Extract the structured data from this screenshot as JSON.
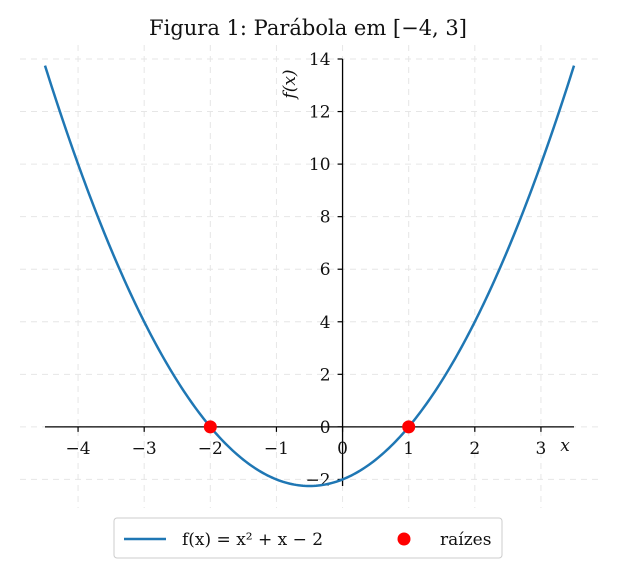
{
  "chart_data": {
    "type": "line",
    "title": "Figura 1: Parábola em [−4, 3]",
    "xlabel": "x",
    "ylabel": "f(x)",
    "xlim": [
      -4.5,
      3.5
    ],
    "ylim": [
      -2.25,
      14
    ],
    "grid": true,
    "legend_position": "bottom-center",
    "x_ticks": [
      -4,
      -3,
      -2,
      -1,
      0,
      1,
      2,
      3
    ],
    "x_tick_labels": [
      "−4",
      "−3",
      "−2",
      "−1",
      "0",
      "1",
      "2",
      "3"
    ],
    "y_ticks": [
      -2,
      0,
      2,
      4,
      6,
      8,
      10,
      12,
      14
    ],
    "y_tick_labels": [
      "−2",
      "0",
      "2",
      "4",
      "6",
      "8",
      "10",
      "12",
      "14"
    ],
    "series": [
      {
        "name": "f(x) = x² + x − 2",
        "kind": "line",
        "color": "#1f77b4",
        "x": [
          -4.5,
          -4.0,
          -3.5,
          -3.0,
          -2.5,
          -2.0,
          -1.5,
          -1.0,
          -0.5,
          0.0,
          0.5,
          1.0,
          1.5,
          2.0,
          2.5,
          3.0,
          3.5
        ],
        "y": [
          13.75,
          10.0,
          6.75,
          4.0,
          1.75,
          0.0,
          -1.25,
          -2.0,
          -2.25,
          -2.0,
          -1.25,
          0.0,
          1.75,
          4.0,
          6.75,
          10.0,
          13.75
        ]
      },
      {
        "name": "raízes",
        "kind": "scatter",
        "color": "#ff0000",
        "x": [
          -2,
          1
        ],
        "y": [
          0,
          0
        ]
      }
    ],
    "legend": {
      "line_label": "f(x) = x² + x − 2",
      "scatter_label": "raízes"
    }
  }
}
